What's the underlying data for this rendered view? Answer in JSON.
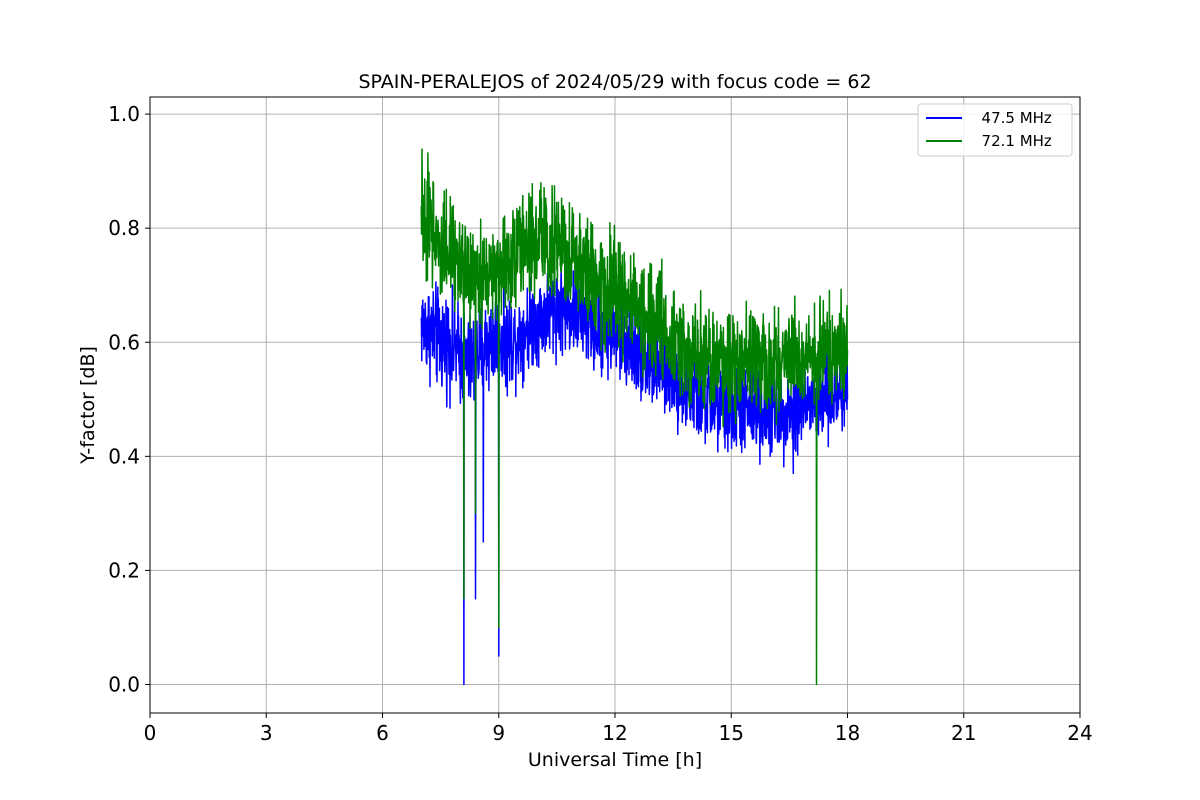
{
  "chart_data": {
    "type": "line",
    "title": "SPAIN-PERALEJOS of 2024/05/29 with focus code = 62",
    "xlabel": "Universal Time [h]",
    "ylabel": "Y-factor [dB]",
    "xlim": [
      0,
      24
    ],
    "ylim": [
      -0.05,
      1.03
    ],
    "xticks": [
      0,
      3,
      6,
      9,
      12,
      15,
      18,
      21,
      24
    ],
    "yticks": [
      0.0,
      0.2,
      0.4,
      0.6,
      0.8,
      1.0
    ],
    "xtick_labels": [
      "0",
      "3",
      "6",
      "9",
      "12",
      "15",
      "18",
      "21",
      "24"
    ],
    "ytick_labels": [
      "0.0",
      "0.2",
      "0.4",
      "0.6",
      "0.8",
      "1.0"
    ],
    "grid": true,
    "legend_position": "top-right",
    "series": [
      {
        "name": "  47.5 MHz",
        "color": "#0000ff",
        "x": [
          7.0,
          7.25,
          7.5,
          7.75,
          8.0,
          8.1,
          8.25,
          8.5,
          8.75,
          9.0,
          9.25,
          9.5,
          9.75,
          10.0,
          10.25,
          10.5,
          10.75,
          11.0,
          11.25,
          11.5,
          11.75,
          12.0,
          12.25,
          12.5,
          12.75,
          13.0,
          13.25,
          13.5,
          13.75,
          14.0,
          14.25,
          14.5,
          14.75,
          15.0,
          15.25,
          15.5,
          15.75,
          16.0,
          16.25,
          16.5,
          16.75,
          17.0,
          17.25,
          17.5,
          17.75,
          18.0
        ],
        "values": [
          0.63,
          0.62,
          0.6,
          0.6,
          0.58,
          0.57,
          0.56,
          0.58,
          0.6,
          0.61,
          0.6,
          0.61,
          0.63,
          0.64,
          0.65,
          0.66,
          0.66,
          0.65,
          0.64,
          0.62,
          0.62,
          0.61,
          0.6,
          0.59,
          0.57,
          0.56,
          0.55,
          0.54,
          0.52,
          0.51,
          0.5,
          0.49,
          0.48,
          0.48,
          0.48,
          0.48,
          0.48,
          0.48,
          0.48,
          0.48,
          0.49,
          0.49,
          0.5,
          0.5,
          0.51,
          0.52
        ],
        "spread": [
          0.07,
          0.08,
          0.08,
          0.08,
          0.08,
          0.08,
          0.08,
          0.08,
          0.08,
          0.08,
          0.08,
          0.07,
          0.07,
          0.07,
          0.07,
          0.07,
          0.07,
          0.07,
          0.07,
          0.07,
          0.07,
          0.07,
          0.07,
          0.07,
          0.07,
          0.07,
          0.07,
          0.07,
          0.07,
          0.07,
          0.07,
          0.07,
          0.07,
          0.07,
          0.07,
          0.07,
          0.07,
          0.07,
          0.07,
          0.07,
          0.07,
          0.07,
          0.07,
          0.07,
          0.07,
          0.07
        ],
        "dips": [
          [
            8.1,
            0.0
          ],
          [
            8.4,
            0.15
          ],
          [
            8.6,
            0.25
          ],
          [
            9.0,
            0.05
          ],
          [
            16.6,
            0.37
          ]
        ]
      },
      {
        "name": "  72.1 MHz",
        "color": "#008000",
        "x": [
          7.0,
          7.25,
          7.5,
          7.75,
          8.0,
          8.1,
          8.25,
          8.5,
          8.75,
          9.0,
          9.25,
          9.5,
          9.75,
          10.0,
          10.25,
          10.5,
          10.75,
          11.0,
          11.25,
          11.5,
          11.75,
          12.0,
          12.25,
          12.5,
          12.75,
          13.0,
          13.25,
          13.5,
          13.75,
          14.0,
          14.25,
          14.5,
          14.75,
          15.0,
          15.25,
          15.5,
          15.75,
          16.0,
          16.25,
          16.5,
          16.75,
          17.0,
          17.25,
          17.5,
          17.75,
          18.0
        ],
        "values": [
          0.82,
          0.8,
          0.78,
          0.76,
          0.74,
          0.72,
          0.71,
          0.71,
          0.72,
          0.73,
          0.74,
          0.76,
          0.77,
          0.78,
          0.78,
          0.77,
          0.76,
          0.74,
          0.72,
          0.71,
          0.7,
          0.69,
          0.68,
          0.67,
          0.65,
          0.63,
          0.62,
          0.61,
          0.6,
          0.59,
          0.58,
          0.57,
          0.57,
          0.56,
          0.56,
          0.56,
          0.56,
          0.56,
          0.56,
          0.57,
          0.57,
          0.57,
          0.58,
          0.58,
          0.58,
          0.58
        ],
        "spread": [
          0.09,
          0.09,
          0.09,
          0.09,
          0.09,
          0.09,
          0.09,
          0.09,
          0.09,
          0.09,
          0.09,
          0.09,
          0.09,
          0.09,
          0.09,
          0.09,
          0.09,
          0.09,
          0.09,
          0.09,
          0.09,
          0.09,
          0.09,
          0.09,
          0.09,
          0.09,
          0.08,
          0.08,
          0.08,
          0.08,
          0.08,
          0.08,
          0.08,
          0.08,
          0.08,
          0.08,
          0.08,
          0.08,
          0.08,
          0.08,
          0.08,
          0.08,
          0.08,
          0.08,
          0.08,
          0.08
        ],
        "dips": [
          [
            8.1,
            0.15
          ],
          [
            8.4,
            0.3
          ],
          [
            9.0,
            0.1
          ],
          [
            17.2,
            0.0
          ]
        ]
      }
    ]
  }
}
